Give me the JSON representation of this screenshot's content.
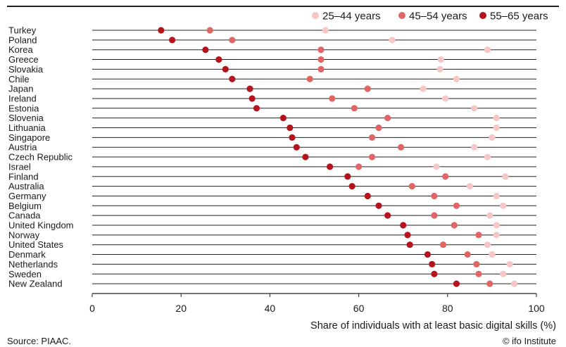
{
  "chart_data": {
    "type": "scatter",
    "xlabel": "Share of individuals with at least basic digital skills (%)",
    "xlim": [
      0,
      100
    ],
    "xticks": [
      0,
      20,
      40,
      60,
      80,
      100
    ],
    "grid": false,
    "legend_position": "top-right",
    "categories": [
      "Turkey",
      "Poland",
      "Korea",
      "Greece",
      "Slovakia",
      "Chile",
      "Japan",
      "Ireland",
      "Estonia",
      "Slovenia",
      "Lithuania",
      "Singapore",
      "Austria",
      "Czech Republic",
      "Israel",
      "Finland",
      "Australia",
      "Germany",
      "Belgium",
      "Canada",
      "United Kingdom",
      "Norway",
      "United States",
      "Denmark",
      "Netherlands",
      "Sweden",
      "New Zealand"
    ],
    "series": [
      {
        "name": "25–44 years",
        "color": "#f7c6c6",
        "values": [
          52.5,
          67.5,
          89,
          78.5,
          78.3,
          82,
          74.5,
          79.5,
          86,
          91,
          91,
          90,
          86,
          89,
          77.5,
          93,
          85,
          91,
          92.5,
          89.5,
          91,
          91,
          89,
          90,
          94,
          92.5,
          95
        ]
      },
      {
        "name": "45–54 years",
        "color": "#e06666",
        "values": [
          26.5,
          31.5,
          51.5,
          51.5,
          51.5,
          49,
          62,
          54,
          59,
          66.5,
          64.5,
          63,
          69.5,
          63,
          60,
          79.5,
          72,
          77,
          82,
          77,
          81.5,
          87,
          79,
          84.5,
          86.5,
          87,
          89.5
        ]
      },
      {
        "name": "55–65 years",
        "color": "#b3141e",
        "values": [
          15.5,
          18,
          25.5,
          28.5,
          30,
          31.5,
          35.5,
          36,
          37,
          43,
          44.5,
          45,
          46,
          48,
          53.5,
          57.5,
          58.5,
          62,
          64.5,
          66.5,
          70,
          71,
          71.5,
          75.5,
          76.5,
          77,
          82
        ]
      }
    ]
  },
  "footer": {
    "source": "Source: PIAAC.",
    "credit": "© ifo Institute"
  }
}
